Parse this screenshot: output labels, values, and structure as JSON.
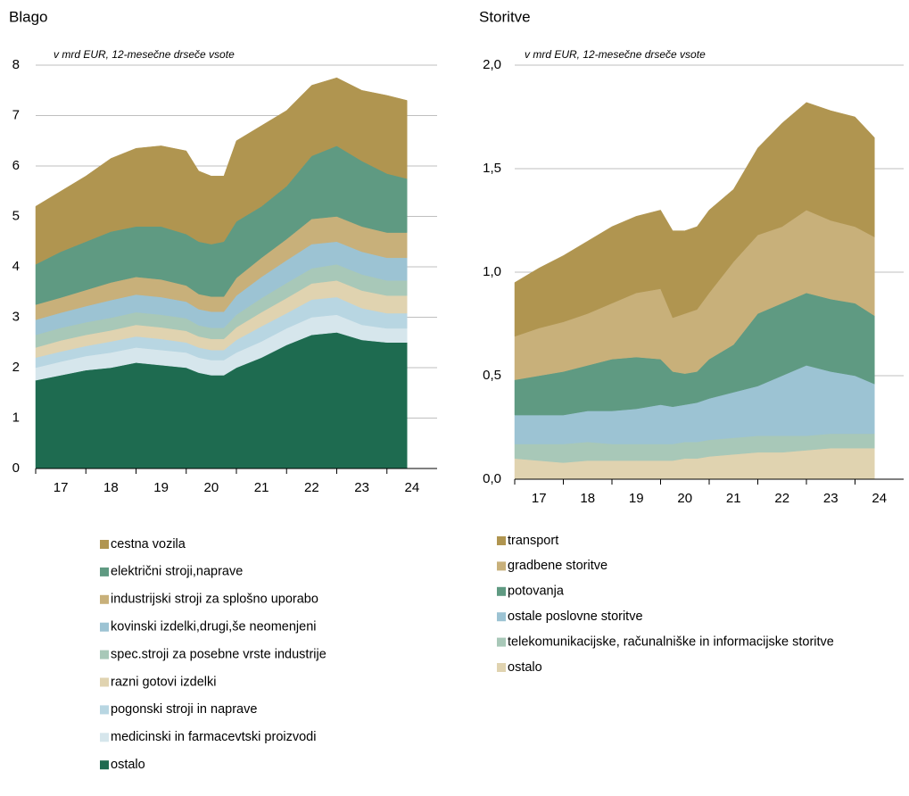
{
  "chart_data": [
    {
      "type": "stacked_area",
      "title": "Blago",
      "subtitle": "v mrd EUR, 12-mesečne drseče vsote",
      "x": [
        2017.0,
        2017.5,
        2018.0,
        2018.5,
        2019.0,
        2019.5,
        2020.0,
        2020.25,
        2020.5,
        2020.75,
        2021.0,
        2021.5,
        2022.0,
        2022.5,
        2023.0,
        2023.5,
        2024.0,
        2024.4
      ],
      "xlim": [
        2017,
        2025
      ],
      "xticks": [
        {
          "value": 2017.5,
          "label": "17"
        },
        {
          "value": 2018.5,
          "label": "18"
        },
        {
          "value": 2019.5,
          "label": "19"
        },
        {
          "value": 2020.5,
          "label": "20"
        },
        {
          "value": 2021.5,
          "label": "21"
        },
        {
          "value": 2022.5,
          "label": "22"
        },
        {
          "value": 2023.5,
          "label": "23"
        },
        {
          "value": 2024.5,
          "label": "24"
        }
      ],
      "ylim": [
        0,
        8
      ],
      "yticks": [
        0,
        1,
        2,
        3,
        4,
        5,
        6,
        7,
        8
      ],
      "grid": true,
      "series": [
        {
          "name": "cestna vozila",
          "color": "#b09550",
          "values": [
            1.15,
            1.2,
            1.3,
            1.45,
            1.55,
            1.6,
            1.65,
            1.4,
            1.35,
            1.3,
            1.6,
            1.6,
            1.5,
            1.4,
            1.35,
            1.4,
            1.55,
            1.55
          ]
        },
        {
          "name": "električni stroji,naprave",
          "color": "#5f9a82",
          "values": [
            0.8,
            0.91,
            0.96,
            1.01,
            1.0,
            1.05,
            1.02,
            1.04,
            1.04,
            1.09,
            1.12,
            1.02,
            1.05,
            1.25,
            1.4,
            1.3,
            1.17,
            1.07
          ]
        },
        {
          "name": "industrijski stroji za splošno uporabo",
          "color": "#c8b07a",
          "values": [
            0.3,
            0.3,
            0.32,
            0.35,
            0.35,
            0.35,
            0.32,
            0.3,
            0.3,
            0.3,
            0.35,
            0.38,
            0.42,
            0.5,
            0.5,
            0.5,
            0.5,
            0.5
          ]
        },
        {
          "name": "kovinski izdelki,drugi,še neomenjeni",
          "color": "#9cc3d3",
          "values": [
            0.3,
            0.3,
            0.32,
            0.35,
            0.35,
            0.35,
            0.33,
            0.32,
            0.32,
            0.32,
            0.38,
            0.42,
            0.45,
            0.48,
            0.45,
            0.45,
            0.45,
            0.45
          ]
        },
        {
          "name": "spec.stroji za posebne vrste industrije",
          "color": "#a8c8b8",
          "values": [
            0.25,
            0.25,
            0.25,
            0.25,
            0.25,
            0.25,
            0.25,
            0.22,
            0.22,
            0.22,
            0.25,
            0.28,
            0.3,
            0.3,
            0.32,
            0.32,
            0.3,
            0.3
          ]
        },
        {
          "name": "razni gotovi izdelki",
          "color": "#e0d3b0",
          "values": [
            0.2,
            0.22,
            0.22,
            0.22,
            0.23,
            0.23,
            0.23,
            0.22,
            0.22,
            0.22,
            0.25,
            0.28,
            0.3,
            0.32,
            0.33,
            0.35,
            0.35,
            0.35
          ]
        },
        {
          "name": "pogonski stroji in naprave",
          "color": "#b8d6e2",
          "values": [
            0.2,
            0.2,
            0.2,
            0.22,
            0.22,
            0.22,
            0.2,
            0.2,
            0.2,
            0.2,
            0.25,
            0.3,
            0.3,
            0.35,
            0.35,
            0.33,
            0.3,
            0.3
          ]
        },
        {
          "name": "medicinski in farmacevtski proizvodi",
          "color": "#d6e6ec",
          "values": [
            0.25,
            0.27,
            0.28,
            0.3,
            0.3,
            0.3,
            0.3,
            0.3,
            0.3,
            0.3,
            0.3,
            0.32,
            0.33,
            0.35,
            0.35,
            0.3,
            0.28,
            0.28
          ]
        },
        {
          "name": "ostalo",
          "color": "#1e6b50",
          "values": [
            1.75,
            1.85,
            1.95,
            2.0,
            2.1,
            2.05,
            2.0,
            1.9,
            1.85,
            1.85,
            2.0,
            2.2,
            2.45,
            2.65,
            2.7,
            2.55,
            2.5,
            2.5
          ]
        }
      ]
    },
    {
      "type": "stacked_area",
      "title": "Storitve",
      "subtitle": "v mrd EUR, 12-mesečne drseče vsote",
      "x": [
        2017.0,
        2017.5,
        2018.0,
        2018.5,
        2019.0,
        2019.5,
        2020.0,
        2020.25,
        2020.5,
        2020.75,
        2021.0,
        2021.5,
        2022.0,
        2022.5,
        2023.0,
        2023.5,
        2024.0,
        2024.4
      ],
      "xlim": [
        2017,
        2025
      ],
      "xticks": [
        {
          "value": 2017.5,
          "label": "17"
        },
        {
          "value": 2018.5,
          "label": "18"
        },
        {
          "value": 2019.5,
          "label": "19"
        },
        {
          "value": 2020.5,
          "label": "20"
        },
        {
          "value": 2021.5,
          "label": "21"
        },
        {
          "value": 2022.5,
          "label": "22"
        },
        {
          "value": 2023.5,
          "label": "23"
        },
        {
          "value": 2024.5,
          "label": "24"
        }
      ],
      "ylim": [
        0,
        2
      ],
      "yticks": [
        {
          "value": 0,
          "label": "0,0"
        },
        {
          "value": 0.5,
          "label": "0,5"
        },
        {
          "value": 1,
          "label": "1,0"
        },
        {
          "value": 1.5,
          "label": "1,5"
        },
        {
          "value": 2,
          "label": "2,0"
        }
      ],
      "grid": true,
      "series": [
        {
          "name": "transport",
          "color": "#b09550",
          "values": [
            0.26,
            0.29,
            0.32,
            0.35,
            0.37,
            0.37,
            0.38,
            0.42,
            0.4,
            0.4,
            0.4,
            0.35,
            0.42,
            0.5,
            0.52,
            0.53,
            0.53,
            0.48
          ]
        },
        {
          "name": "gradbene storitve",
          "color": "#c8b07a",
          "values": [
            0.21,
            0.23,
            0.24,
            0.25,
            0.27,
            0.31,
            0.34,
            0.26,
            0.29,
            0.3,
            0.32,
            0.4,
            0.38,
            0.37,
            0.4,
            0.38,
            0.37,
            0.38
          ]
        },
        {
          "name": "potovanja",
          "color": "#5f9a82",
          "values": [
            0.17,
            0.19,
            0.21,
            0.22,
            0.25,
            0.25,
            0.22,
            0.17,
            0.15,
            0.15,
            0.19,
            0.23,
            0.35,
            0.35,
            0.35,
            0.35,
            0.35,
            0.33
          ]
        },
        {
          "name": "ostale poslovne storitve",
          "color": "#9cc3d3",
          "values": [
            0.14,
            0.14,
            0.14,
            0.15,
            0.16,
            0.17,
            0.19,
            0.18,
            0.18,
            0.19,
            0.2,
            0.22,
            0.24,
            0.29,
            0.34,
            0.3,
            0.28,
            0.24
          ]
        },
        {
          "name": "telekomunikacijske, računalniške in informacijske storitve",
          "color": "#a8c8b8",
          "values": [
            0.07,
            0.08,
            0.09,
            0.09,
            0.08,
            0.08,
            0.08,
            0.08,
            0.08,
            0.08,
            0.08,
            0.08,
            0.08,
            0.08,
            0.07,
            0.07,
            0.07,
            0.07
          ]
        },
        {
          "name": "ostalo",
          "color": "#e0d3b0",
          "values": [
            0.1,
            0.09,
            0.08,
            0.09,
            0.09,
            0.09,
            0.09,
            0.09,
            0.1,
            0.1,
            0.11,
            0.12,
            0.13,
            0.13,
            0.14,
            0.15,
            0.15,
            0.15
          ]
        }
      ]
    }
  ]
}
